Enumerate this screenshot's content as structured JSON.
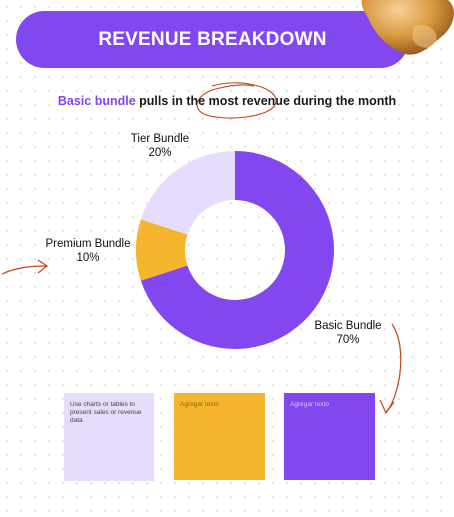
{
  "header": {
    "title": "REVENUE BREAKDOWN"
  },
  "subtitle": {
    "accent": "Basic bundle",
    "part1": "pulls in the",
    "emphasis": "most revenue",
    "part2": "during the month"
  },
  "chart_data": {
    "type": "pie",
    "donut": true,
    "categories": [
      "Basic Bundle",
      "Premium Bundle",
      "Tier Bundle"
    ],
    "values": [
      70,
      10,
      20
    ],
    "percent_labels": [
      "70%",
      "10%",
      "20%"
    ],
    "colors": [
      "#8347f0",
      "#f5b52c",
      "#e6dcfc"
    ],
    "title": ""
  },
  "notes": [
    {
      "text": "Use charts or tables to present sales or revenue data",
      "color": "#e6dcfc"
    },
    {
      "text": "Agregar texto",
      "color": "#f5b52c"
    },
    {
      "text": "Agregar texto",
      "color": "#8347f0"
    }
  ],
  "colors": {
    "accent": "#8347f0",
    "annotation": "#c0461c"
  }
}
